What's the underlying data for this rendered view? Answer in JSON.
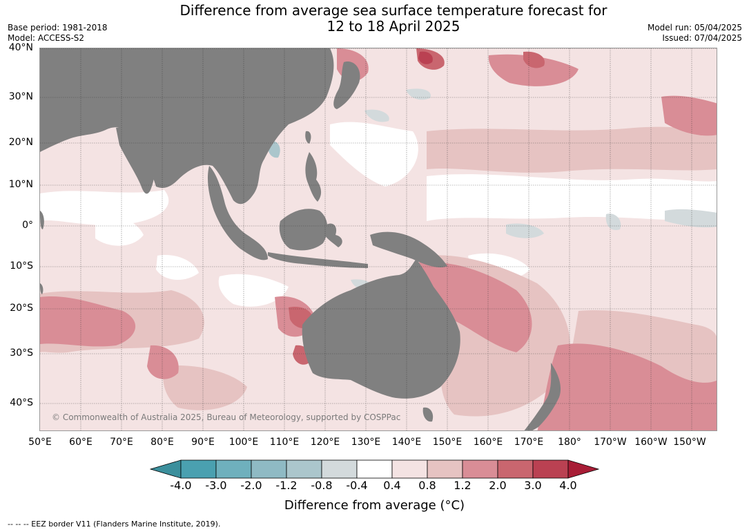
{
  "title_line1": "Difference from average sea surface temperature forecast for",
  "title_line2": "12 to 18 April 2025",
  "base_period": "Base period: 1981-2018",
  "model": "Model: ACCESS-S2",
  "model_run": "Model run: 05/04/2025",
  "issued": "Issued: 07/04/2025",
  "copyright": "© Commonwealth of Australia 2025, Bureau of Meteorology, supported by COSPPac",
  "footnote": "--  --  -- EEZ border V11 (Flanders Marine Institute, 2019).",
  "lat_labels": [
    "40°N",
    "30°N",
    "20°N",
    "10°N",
    "0°",
    "10°S",
    "20°S",
    "30°S",
    "40°S"
  ],
  "lon_labels": [
    "50°E",
    "60°E",
    "70°E",
    "80°E",
    "90°E",
    "100°E",
    "110°E",
    "120°E",
    "130°E",
    "140°E",
    "150°E",
    "160°E",
    "170°E",
    "180°",
    "170°W",
    "160°W",
    "150°W"
  ],
  "colorbar": {
    "ticks": [
      "-4.0",
      "-3.0",
      "-2.0",
      "-1.2",
      "-0.8",
      "-0.4",
      "0.4",
      "0.8",
      "1.2",
      "2.0",
      "3.0",
      "4.0"
    ],
    "colors": [
      "#3b8f9c",
      "#4aa0b0",
      "#6fb0bd",
      "#8fbac4",
      "#abc6cc",
      "#d3dadc",
      "#ffffff",
      "#f4e3e3",
      "#e6c3c2",
      "#d98d96",
      "#c9666f",
      "#ba4152",
      "#a81d36"
    ],
    "label": "Difference from average (°C)"
  },
  "land_color": "#808080"
}
